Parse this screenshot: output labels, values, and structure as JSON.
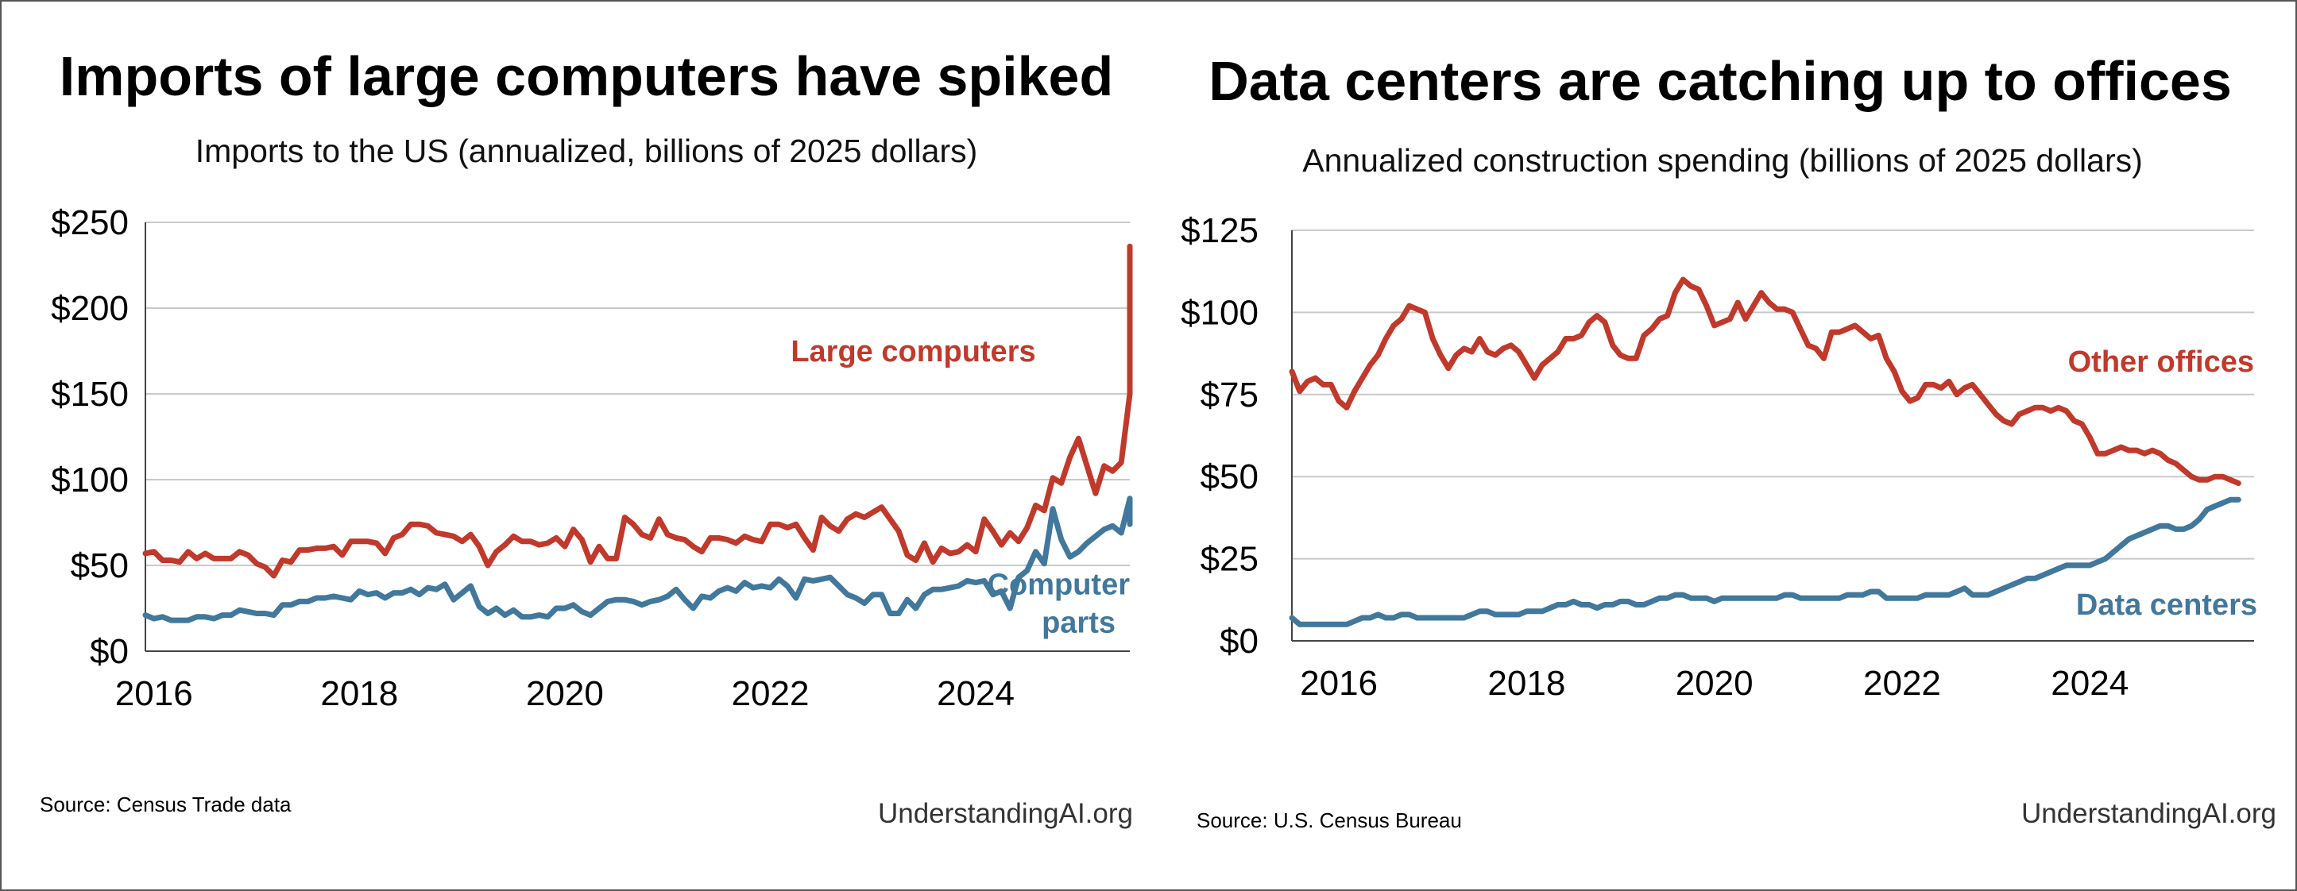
{
  "chart_data": [
    {
      "type": "line",
      "title": "Imports of large computers have spiked",
      "subtitle": "Imports to the US (annualized, billions of 2025 dollars)",
      "xlabel": "",
      "ylabel": "",
      "x_start": 2015.917,
      "x_step": 0.08333,
      "xlim": [
        2015.917,
        2025.5
      ],
      "ylim": [
        0,
        250
      ],
      "x_ticks": [
        {
          "value": 2016,
          "label": "2016"
        },
        {
          "value": 2018,
          "label": "2018"
        },
        {
          "value": 2020,
          "label": "2020"
        },
        {
          "value": 2022,
          "label": "2022"
        },
        {
          "value": 2024,
          "label": "2024"
        }
      ],
      "y_ticks": [
        {
          "value": 0,
          "label": "$0"
        },
        {
          "value": 50,
          "label": "$50"
        },
        {
          "value": 100,
          "label": "$100"
        },
        {
          "value": 150,
          "label": "$150"
        },
        {
          "value": 200,
          "label": "$200"
        },
        {
          "value": 250,
          "label": "$250"
        }
      ],
      "grid": true,
      "series": [
        {
          "name": "Large computers",
          "color": "#c0392b",
          "label_lines": [
            "Large computers"
          ],
          "label_anchor_x": 2024.6,
          "label_anchor_y": 169,
          "values": [
            57,
            58,
            53,
            53,
            52,
            58,
            54,
            57,
            54,
            54,
            54,
            58,
            56,
            51,
            49,
            44,
            53,
            52,
            59,
            59,
            60,
            60,
            61,
            56,
            64,
            64,
            64,
            63,
            57,
            66,
            68,
            74,
            74,
            73,
            69,
            68,
            67,
            64,
            68,
            61,
            50,
            58,
            62,
            67,
            64,
            64,
            62,
            63,
            66,
            61,
            71,
            65,
            52,
            61,
            54,
            54,
            78,
            74,
            68,
            66,
            77,
            68,
            66,
            65,
            61,
            58,
            66,
            66,
            65,
            63,
            67,
            65,
            64,
            74,
            74,
            72,
            74,
            66,
            59,
            78,
            73,
            70,
            77,
            80,
            78,
            81,
            84,
            77,
            70,
            56,
            53,
            63,
            52,
            60,
            57,
            58,
            62,
            58,
            77,
            70,
            62,
            69,
            64,
            72,
            85,
            82,
            101,
            98,
            113,
            124,
            108,
            92,
            108,
            105,
            110,
            150,
            160,
            190,
            200,
            236
          ]
        },
        {
          "name": "Computer parts",
          "color": "#41789c",
          "label_lines": [
            "Computer",
            "parts"
          ],
          "label_anchor_x": 2025.5,
          "label_anchor_y": 33,
          "values": [
            21,
            19,
            20,
            18,
            18,
            18,
            20,
            20,
            19,
            21,
            21,
            24,
            23,
            22,
            22,
            21,
            27,
            27,
            29,
            29,
            31,
            31,
            32,
            31,
            30,
            35,
            33,
            34,
            31,
            34,
            34,
            36,
            33,
            37,
            36,
            39,
            30,
            34,
            38,
            26,
            22,
            25,
            21,
            24,
            20,
            20,
            21,
            20,
            25,
            25,
            27,
            23,
            21,
            25,
            29,
            30,
            30,
            29,
            27,
            29,
            30,
            32,
            36,
            30,
            25,
            32,
            31,
            35,
            37,
            35,
            40,
            37,
            38,
            37,
            42,
            38,
            31,
            42,
            41,
            42,
            43,
            38,
            33,
            31,
            28,
            33,
            33,
            22,
            22,
            30,
            25,
            33,
            36,
            36,
            37,
            38,
            41,
            40,
            41,
            33,
            35,
            25,
            43,
            47,
            58,
            51,
            83,
            65,
            55,
            58,
            63,
            67,
            71,
            73,
            69,
            89,
            78,
            82,
            78,
            74
          ]
        }
      ],
      "source": "Source: Census Trade data",
      "brand": "UnderstandingAI.org"
    },
    {
      "type": "line",
      "title": "Data centers are catching up to offices",
      "subtitle": "Annualized construction spending (billions of 2025 dollars)",
      "xlabel": "",
      "ylabel": "",
      "x_start": 2015.5,
      "x_step": 0.08333,
      "xlim": [
        2015.5,
        2025.75
      ],
      "ylim": [
        0,
        125
      ],
      "x_ticks": [
        {
          "value": 2016,
          "label": "2016"
        },
        {
          "value": 2018,
          "label": "2018"
        },
        {
          "value": 2020,
          "label": "2020"
        },
        {
          "value": 2022,
          "label": "2022"
        },
        {
          "value": 2024,
          "label": "2024"
        }
      ],
      "y_ticks": [
        {
          "value": 0,
          "label": "$0"
        },
        {
          "value": 25,
          "label": "$25"
        },
        {
          "value": 50,
          "label": "$50"
        },
        {
          "value": 75,
          "label": "$75"
        },
        {
          "value": 100,
          "label": "$100"
        },
        {
          "value": 125,
          "label": "$125"
        }
      ],
      "grid": true,
      "series": [
        {
          "name": "Other offices",
          "color": "#c0392b",
          "label_lines": [
            "Other offices"
          ],
          "label_anchor_x": 2025.75,
          "label_anchor_y": 82,
          "values": [
            82,
            76,
            79,
            80,
            78,
            78,
            73,
            71,
            76,
            80,
            84,
            87,
            92,
            96,
            98,
            102,
            101,
            100,
            92,
            87,
            83,
            87,
            89,
            88,
            92,
            88,
            87,
            89,
            90,
            88,
            84,
            80,
            84,
            86,
            88,
            92,
            92,
            93,
            97,
            99,
            97,
            90,
            87,
            86,
            86,
            93,
            95,
            98,
            99,
            106,
            110,
            108,
            107,
            102,
            96,
            97,
            98,
            103,
            98,
            102,
            106,
            103,
            101,
            101,
            100,
            95,
            90,
            89,
            86,
            94,
            94,
            95,
            96,
            94,
            92,
            93,
            86,
            82,
            76,
            73,
            74,
            78,
            78,
            77,
            79,
            75,
            77,
            78,
            75,
            72,
            69,
            67,
            66,
            69,
            70,
            71,
            71,
            70,
            71,
            70,
            67,
            66,
            62,
            57,
            57,
            58,
            59,
            58,
            58,
            57,
            58,
            57,
            55,
            54,
            52,
            50,
            49,
            49,
            50,
            50,
            49,
            48
          ]
        },
        {
          "name": "Data centers",
          "color": "#41789c",
          "label_lines": [
            "Data centers"
          ],
          "label_anchor_x": 2025.75,
          "label_anchor_y": 8,
          "values": [
            7,
            5,
            5,
            5,
            5,
            5,
            5,
            5,
            6,
            7,
            7,
            8,
            7,
            7,
            8,
            8,
            7,
            7,
            7,
            7,
            7,
            7,
            7,
            8,
            9,
            9,
            8,
            8,
            8,
            8,
            9,
            9,
            9,
            10,
            11,
            11,
            12,
            11,
            11,
            10,
            11,
            11,
            12,
            12,
            11,
            11,
            12,
            13,
            13,
            14,
            14,
            13,
            13,
            13,
            12,
            13,
            13,
            13,
            13,
            13,
            13,
            13,
            13,
            14,
            14,
            13,
            13,
            13,
            13,
            13,
            13,
            14,
            14,
            14,
            15,
            15,
            13,
            13,
            13,
            13,
            13,
            14,
            14,
            14,
            14,
            15,
            16,
            14,
            14,
            14,
            15,
            16,
            17,
            18,
            19,
            19,
            20,
            21,
            22,
            23,
            23,
            23,
            23,
            24,
            25,
            27,
            29,
            31,
            32,
            33,
            34,
            35,
            35,
            34,
            34,
            35,
            37,
            40,
            41,
            42,
            43,
            43
          ]
        }
      ],
      "source": "Source: U.S. Census Bureau",
      "brand": "UnderstandingAI.org"
    }
  ]
}
